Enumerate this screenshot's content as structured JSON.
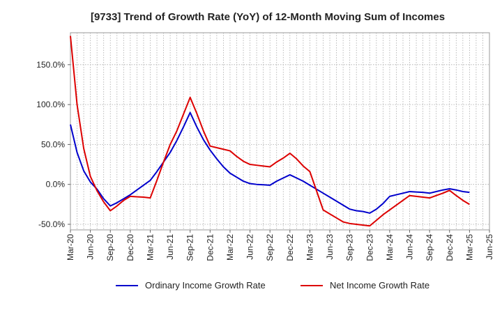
{
  "chart_data": {
    "type": "line",
    "title": "[9733]  Trend of Growth Rate (YoY) of 12-Month Moving Sum of Incomes",
    "xlabel": "",
    "ylabel": "",
    "x": [
      "Mar-20",
      "Apr-20",
      "May-20",
      "Jun-20",
      "Jul-20",
      "Aug-20",
      "Sep-20",
      "Oct-20",
      "Nov-20",
      "Dec-20",
      "Jan-21",
      "Feb-21",
      "Mar-21",
      "Apr-21",
      "May-21",
      "Jun-21",
      "Jul-21",
      "Aug-21",
      "Sep-21",
      "Oct-21",
      "Nov-21",
      "Dec-21",
      "Jan-22",
      "Feb-22",
      "Mar-22",
      "Apr-22",
      "May-22",
      "Jun-22",
      "Jul-22",
      "Aug-22",
      "Sep-22",
      "Oct-22",
      "Nov-22",
      "Dec-22",
      "Jan-23",
      "Feb-23",
      "Mar-23",
      "Apr-23",
      "May-23",
      "Jun-23",
      "Jul-23",
      "Aug-23",
      "Sep-23",
      "Oct-23",
      "Nov-23",
      "Dec-23",
      "Jan-24",
      "Feb-24",
      "Mar-24",
      "Apr-24",
      "May-24",
      "Jun-24",
      "Jul-24",
      "Aug-24",
      "Sep-24",
      "Oct-24",
      "Nov-24",
      "Dec-24",
      "Jan-25",
      "Feb-25",
      "Mar-25",
      "Apr-25",
      "May-25",
      "Jun-25"
    ],
    "x_tick_labels": [
      "Mar-20",
      "Jun-20",
      "Sep-20",
      "Dec-20",
      "Mar-21",
      "Jun-21",
      "Sep-21",
      "Dec-21",
      "Mar-22",
      "Jun-22",
      "Sep-22",
      "Dec-22",
      "Mar-23",
      "Jun-23",
      "Sep-23",
      "Dec-23",
      "Mar-24",
      "Jun-24",
      "Sep-24",
      "Dec-24",
      "Mar-25",
      "Jun-25"
    ],
    "y_ticks": [
      -50,
      0,
      50,
      100,
      150
    ],
    "y_tick_labels": [
      "-50.0%",
      "0.0%",
      "50.0%",
      "100.0%",
      "150.0%"
    ],
    "ylim": [
      -57,
      190
    ],
    "grid": true,
    "legend_position": "bottom",
    "series": [
      {
        "name": "Ordinary Income Growth Rate",
        "color": "#0000cc",
        "values": [
          75,
          40,
          17,
          3,
          -6,
          -18,
          -27,
          -23,
          -18,
          -13,
          -7,
          -1,
          5,
          16,
          28,
          40,
          55,
          72,
          90,
          72,
          56,
          43,
          32,
          22,
          14,
          9,
          4,
          1,
          0,
          -0.5,
          -1,
          4,
          8,
          12,
          8,
          4,
          -1,
          -6,
          -11,
          -16,
          -21,
          -26,
          -31,
          -33,
          -34,
          -36,
          -31,
          -24,
          -15,
          -13,
          -11,
          -9,
          -9.5,
          -10,
          -11,
          -9,
          -7,
          -5.5,
          -7,
          -9,
          -10,
          null,
          null,
          null
        ]
      },
      {
        "name": "Net Income Growth Rate",
        "color": "#dd0000",
        "values": [
          186,
          100,
          45,
          10,
          -8,
          -22,
          -33,
          -27,
          -20,
          -15,
          -15.5,
          -16,
          -17,
          5,
          28,
          50,
          67,
          88,
          109,
          89,
          67,
          48,
          46,
          44,
          42,
          35,
          29,
          25,
          24,
          23,
          22,
          28,
          33,
          39,
          32,
          23,
          16,
          -8,
          -32,
          -37,
          -42,
          -47,
          -49,
          -50,
          -51,
          -52,
          -45,
          -38,
          -32,
          -26,
          -20,
          -14,
          -15,
          -16,
          -17,
          -14,
          -11,
          -7.5,
          -14,
          -20,
          -25,
          null,
          null,
          null
        ]
      }
    ]
  }
}
